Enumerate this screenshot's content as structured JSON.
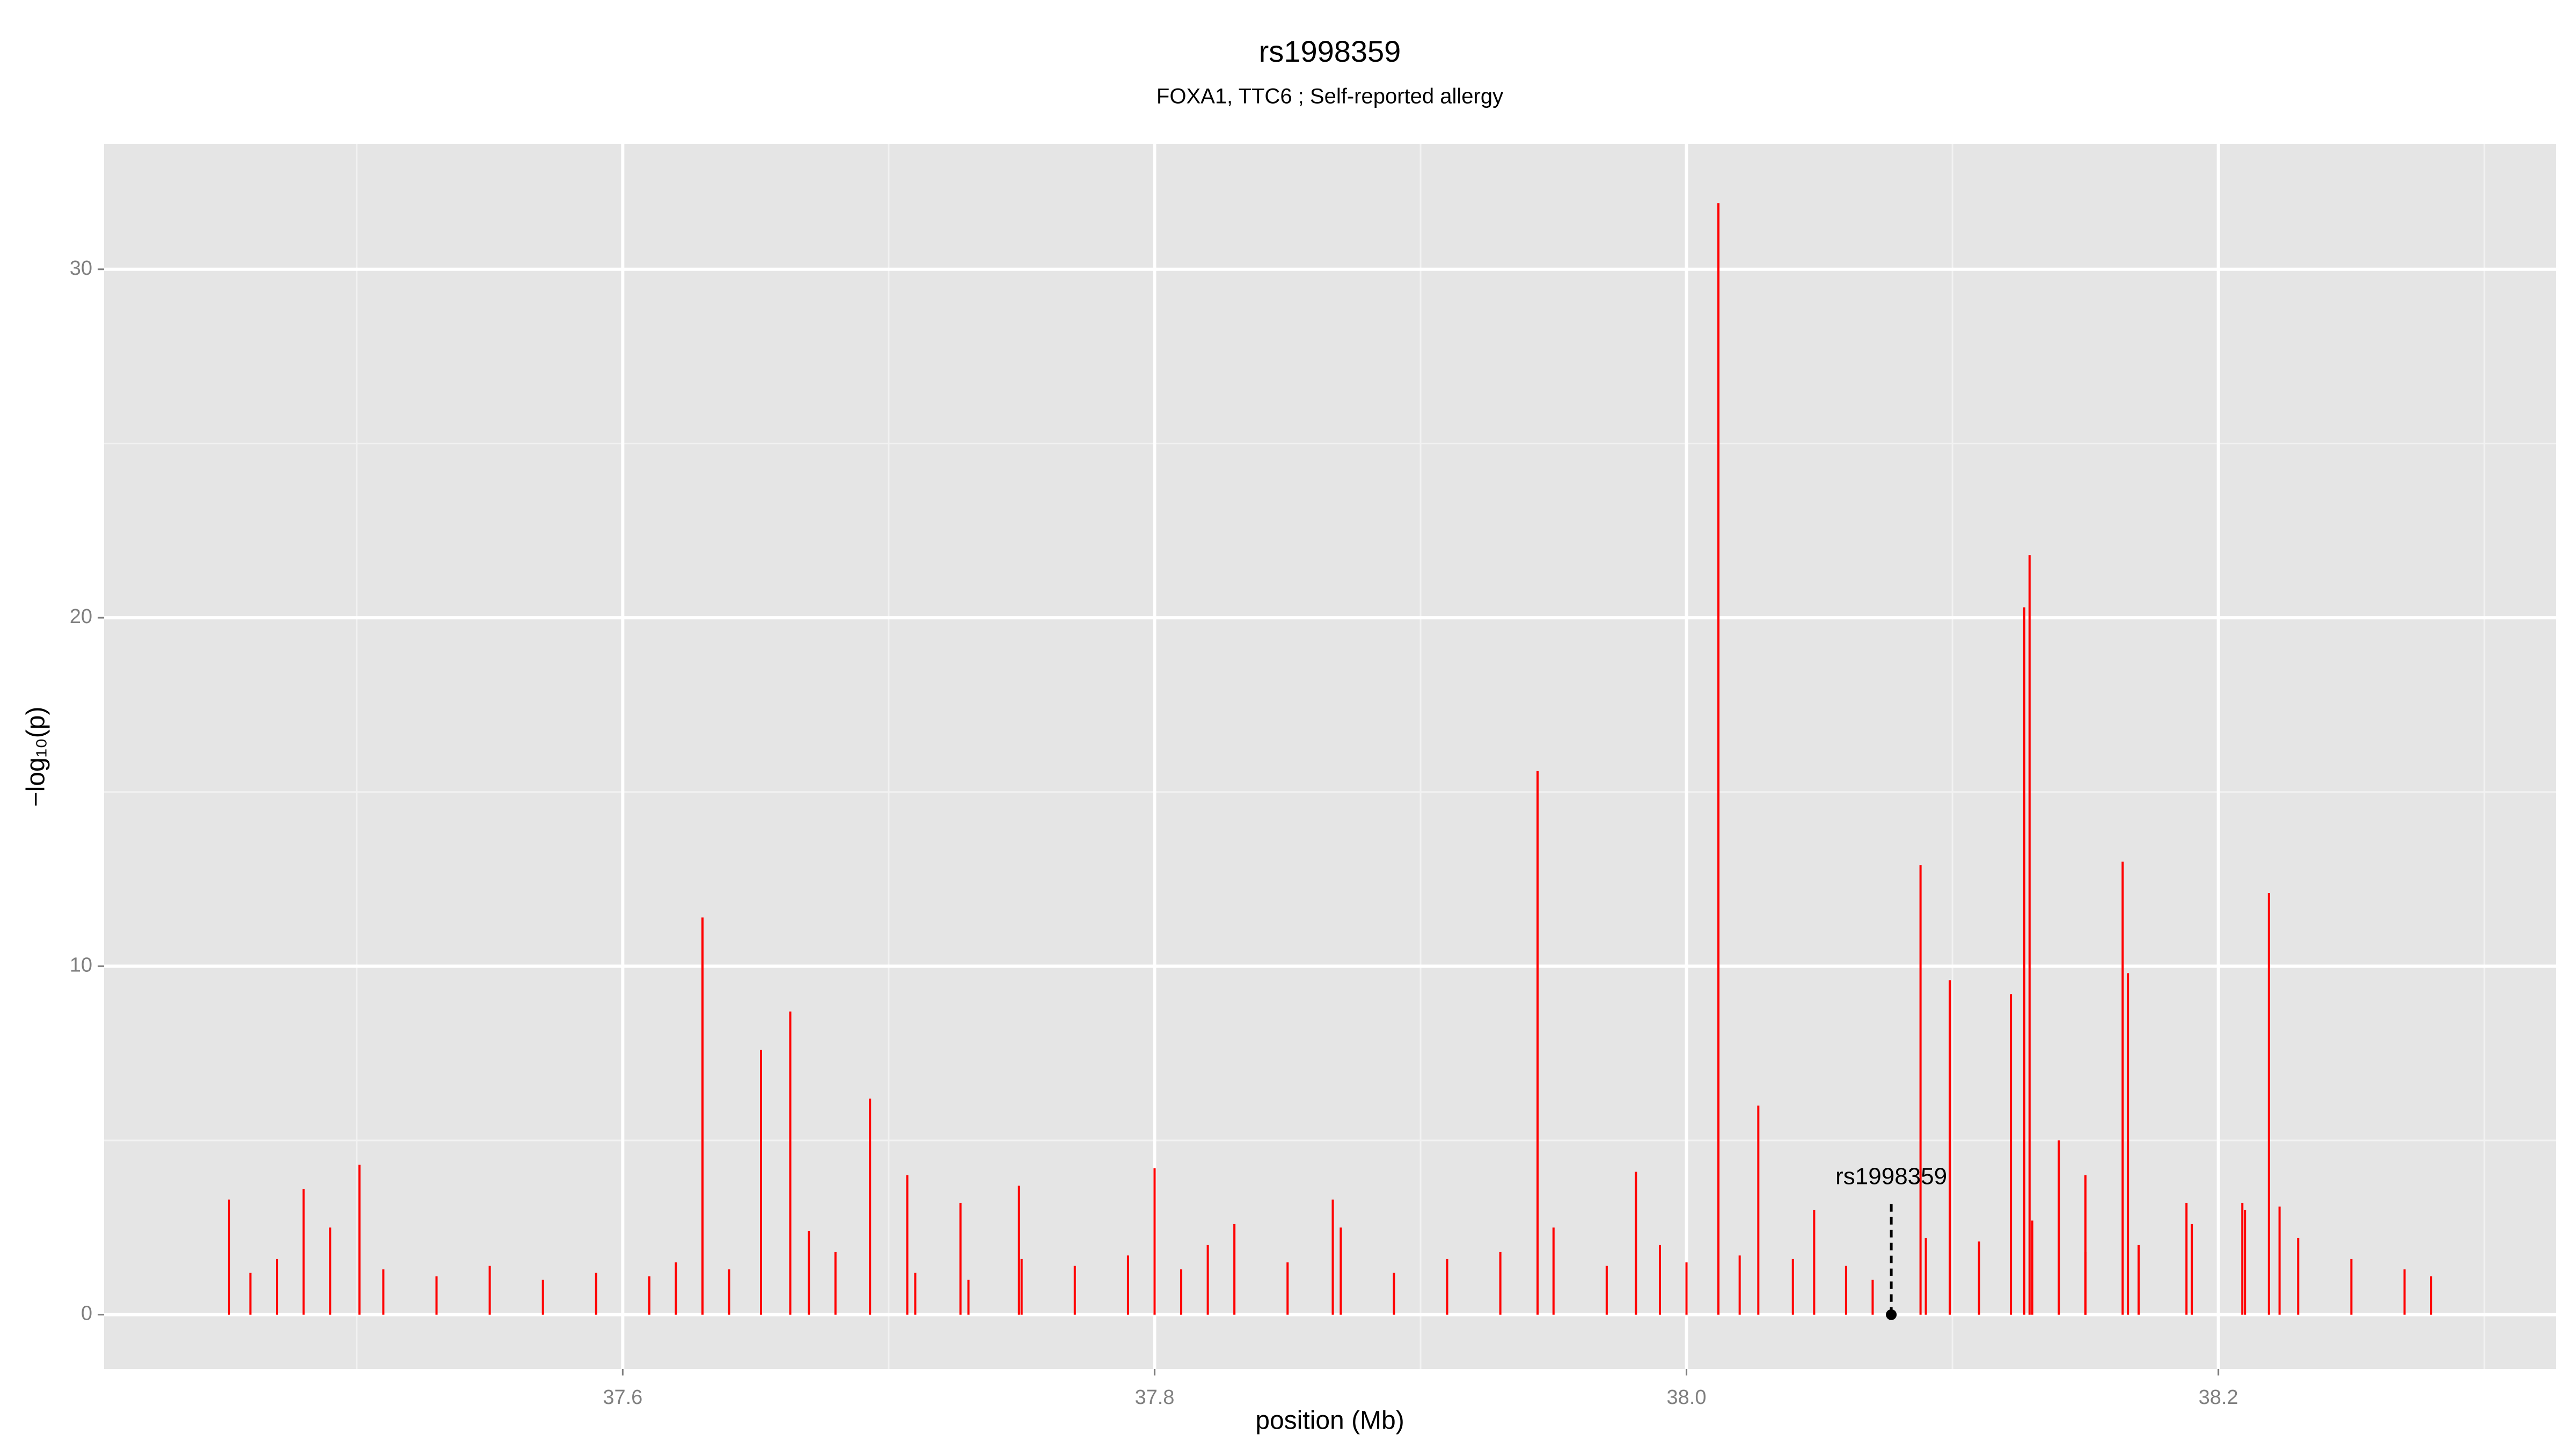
{
  "chart_data": {
    "type": "spike",
    "title": "rs1998359",
    "subtitle": "FOXA1, TTC6 ; Self-reported allergy",
    "x_label": "position (Mb)",
    "y_label": "−log₁₀(p)",
    "color": "#ff0000",
    "grid": true,
    "xlim": [
      37.405,
      38.327
    ],
    "ylim": [
      -1.56,
      33.6
    ],
    "xticks": [
      37.6,
      37.8,
      {
        "value": 38,
        "label": "38.0"
      },
      38.2
    ],
    "yticks": [
      0,
      10,
      20,
      30
    ],
    "x_minor_ticks": [
      37.5,
      37.7,
      37.9,
      38.1,
      38.3
    ],
    "y_minor_ticks": [
      5,
      15,
      25
    ],
    "x": [
      37.452,
      37.48,
      37.501,
      37.63,
      37.652,
      37.663,
      37.693,
      37.707,
      37.727,
      37.749,
      37.8,
      37.83,
      37.867,
      37.944,
      37.981,
      38.012,
      38.027,
      38.048,
      38.088,
      38.099,
      38.122,
      38.127,
      38.129,
      38.14,
      38.15,
      38.164,
      38.166,
      38.188,
      38.209,
      38.219,
      38.223,
      37.46,
      37.47,
      37.49,
      37.51,
      37.53,
      37.55,
      37.57,
      37.59,
      37.61,
      37.62,
      37.64,
      37.67,
      37.68,
      37.71,
      37.73,
      37.75,
      37.77,
      37.79,
      37.81,
      37.82,
      37.85,
      37.87,
      37.89,
      37.91,
      37.93,
      37.95,
      37.97,
      37.99,
      38.0,
      38.02,
      38.04,
      38.06,
      38.07,
      38.09,
      38.11,
      38.13,
      38.15,
      38.17,
      38.19,
      38.21,
      38.23,
      38.25,
      38.27,
      38.28
    ],
    "values": [
      3.3,
      3.6,
      4.3,
      11.4,
      7.6,
      8.7,
      6.2,
      4.0,
      3.2,
      3.7,
      4.2,
      2.6,
      3.3,
      15.6,
      4.1,
      31.9,
      6.0,
      3.0,
      12.9,
      9.6,
      9.2,
      20.3,
      21.8,
      5.0,
      4.0,
      13.0,
      9.8,
      3.2,
      3.2,
      12.1,
      3.1,
      1.2,
      1.6,
      2.5,
      1.3,
      1.1,
      1.4,
      1.0,
      1.2,
      1.1,
      1.5,
      1.3,
      2.4,
      1.8,
      1.2,
      1.0,
      1.6,
      1.4,
      1.7,
      1.3,
      2.0,
      1.5,
      2.5,
      1.2,
      1.6,
      1.8,
      2.5,
      1.4,
      2.0,
      1.5,
      1.7,
      1.6,
      1.4,
      1.0,
      2.2,
      2.1,
      2.7,
      1.8,
      2.0,
      2.6,
      3.0,
      2.2,
      1.6,
      1.3,
      1.1
    ],
    "annotation": {
      "text": "rs1998359",
      "x": 38.077,
      "y": 0
    }
  }
}
